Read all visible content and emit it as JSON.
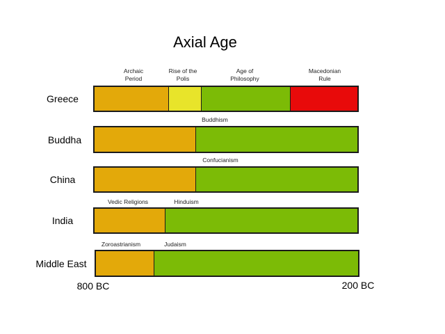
{
  "title": "Axial Age",
  "axis": {
    "start_label": "800 BC",
    "end_label": "200 BC",
    "start": -800,
    "end": -200
  },
  "colors": {
    "orange": "#e3a90a",
    "yellow": "#e8e42a",
    "green": "#7cbb06",
    "red": "#e80a0a"
  },
  "rows": [
    {
      "label": "Greece",
      "segments": [
        {
          "label_lines": [
            "Archaic",
            "Period"
          ],
          "from": -800,
          "to": -630,
          "color": "#e3a90a"
        },
        {
          "label_lines": [
            "Rise of the",
            "Polis"
          ],
          "from": -630,
          "to": -557,
          "color": "#e8e42a"
        },
        {
          "label_lines": [
            "Age of",
            "Philosophy"
          ],
          "from": -557,
          "to": -354,
          "color": "#7cbb06"
        },
        {
          "label_lines": [
            "Macedonian",
            "Rule"
          ],
          "from": -354,
          "to": -200,
          "color": "#e80a0a"
        }
      ]
    },
    {
      "label": "Buddha",
      "segments": [
        {
          "label_lines": [],
          "from": -800,
          "to": -569,
          "color": "#e3a90a"
        },
        {
          "label_lines": [
            "Buddhism"
          ],
          "from": -569,
          "to": -200,
          "color": "#7cbb06"
        }
      ]
    },
    {
      "label": "China",
      "segments": [
        {
          "label_lines": [],
          "from": -800,
          "to": -569,
          "color": "#e3a90a"
        },
        {
          "label_lines": [
            "Confucianism"
          ],
          "from": -569,
          "to": -200,
          "color": "#7cbb06"
        }
      ]
    },
    {
      "label": "India",
      "segments": [
        {
          "label_lines": [
            "Vedic Religions"
          ],
          "from": -800,
          "to": -639,
          "color": "#e3a90a"
        },
        {
          "label_lines": [
            "Hinduism"
          ],
          "from": -639,
          "to": -200,
          "color": "#7cbb06"
        }
      ]
    },
    {
      "label": "Middle East",
      "segments": [
        {
          "label_lines": [
            "Zoroastrianism"
          ],
          "from": -800,
          "to": -667,
          "color": "#e3a90a"
        },
        {
          "label_lines": [
            "Judaism"
          ],
          "from": -667,
          "to": -200,
          "color": "#7cbb06"
        }
      ]
    }
  ]
}
